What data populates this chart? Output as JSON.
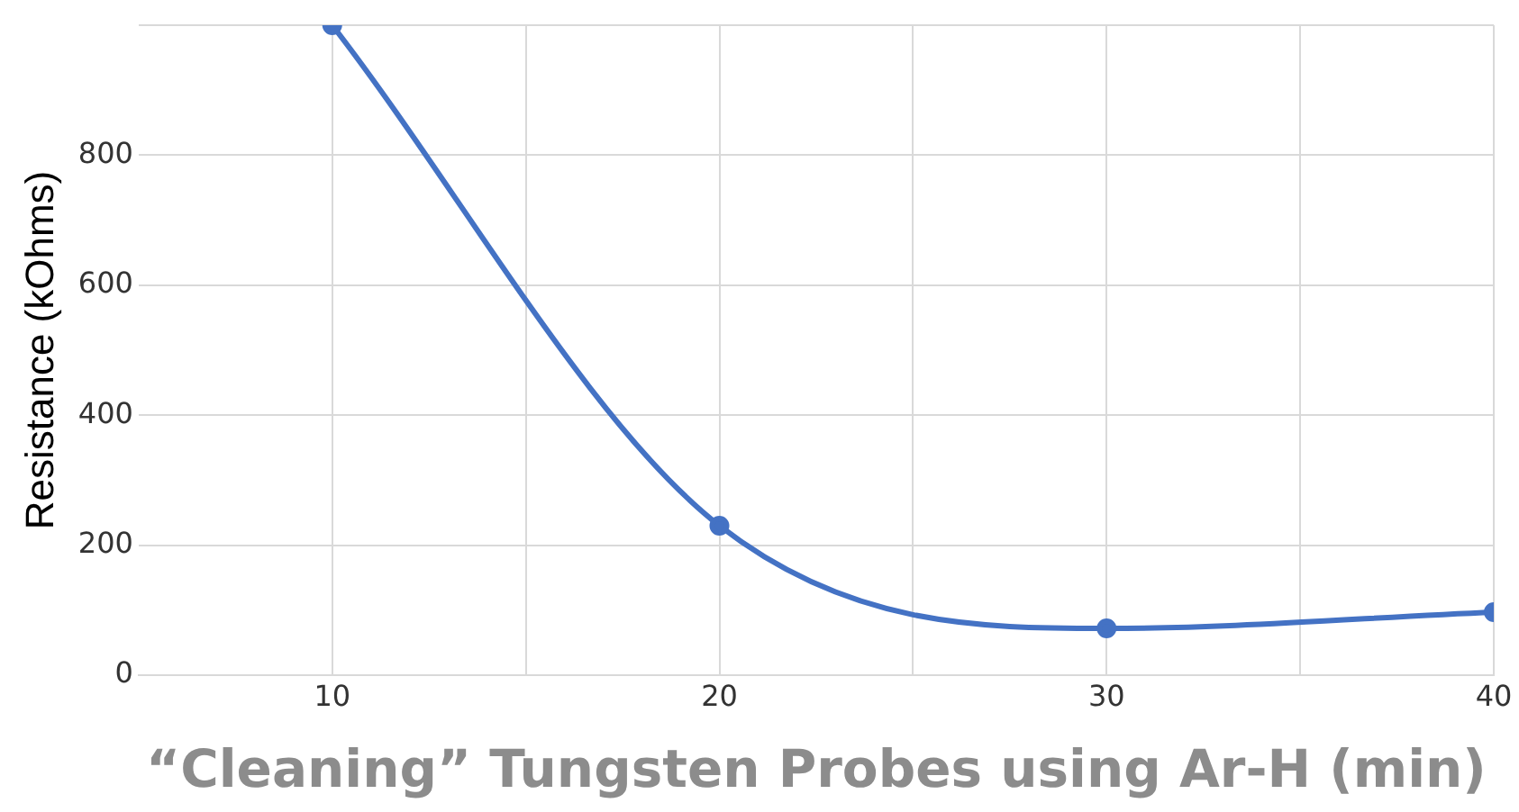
{
  "chart_data": {
    "type": "line",
    "xlabel": "“Cleaning” Tungsten Probes using Ar-H (min)",
    "ylabel": "Resistance (kOhms)",
    "x": [
      10,
      20,
      30,
      40
    ],
    "series": [
      {
        "color": "#4472c4",
        "values": [
          1000,
          230,
          72,
          97
        ]
      }
    ],
    "xlim": [
      5,
      40
    ],
    "xticks": [
      10,
      {
        "value": 15,
        "label": null
      },
      20,
      {
        "value": 25,
        "label": null
      },
      30,
      {
        "value": 35,
        "label": null
      },
      40
    ],
    "ylim": [
      0,
      1000
    ],
    "yticks": [
      0,
      200,
      400,
      600,
      800,
      {
        "value": 1000,
        "label": null
      }
    ],
    "grid": true,
    "marker": "circle",
    "legend": false
  }
}
